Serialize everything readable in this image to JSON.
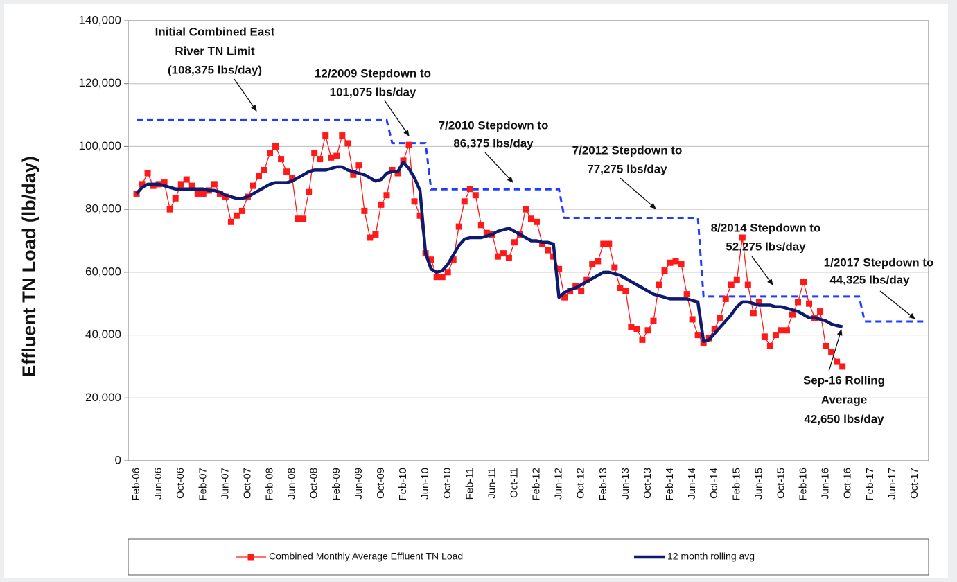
{
  "chart_data": {
    "type": "line",
    "y_label": "Effluent TN Load (lb/day)",
    "categories": [
      null,
      "Feb-06",
      null,
      null,
      null,
      "Jun-06",
      null,
      null,
      null,
      "Oct-06",
      null,
      null,
      null,
      "Feb-07",
      null,
      null,
      null,
      "Jun-07",
      null,
      null,
      null,
      "Oct-07",
      null,
      null,
      null,
      "Feb-08",
      null,
      null,
      null,
      "Jun-08",
      null,
      null,
      null,
      "Oct-08",
      null,
      null,
      null,
      "Feb-09",
      null,
      null,
      null,
      "Jun-09",
      null,
      null,
      null,
      "Oct-09",
      null,
      null,
      null,
      "Feb-10",
      null,
      null,
      null,
      "Jun-10",
      null,
      null,
      null,
      "Oct-10",
      null,
      null,
      null,
      "Feb-11",
      null,
      null,
      null,
      "Jun-11",
      null,
      null,
      null,
      "Oct-11",
      null,
      null,
      null,
      "Feb-12",
      null,
      null,
      null,
      "Jun-12",
      null,
      null,
      null,
      "Oct-12",
      null,
      null,
      null,
      "Feb-13",
      null,
      null,
      null,
      "Jun-13",
      null,
      null,
      null,
      "Oct-13",
      null,
      null,
      null,
      "Feb-14",
      null,
      null,
      null,
      "Jun-14",
      null,
      null,
      null,
      "Oct-14",
      null,
      null,
      null,
      "Feb-15",
      null,
      null,
      null,
      "Jun-15",
      null,
      null,
      null,
      "Oct-15",
      null,
      null,
      null,
      "Feb-16",
      null,
      null,
      null,
      "Jun-16",
      null,
      null,
      null,
      "Oct-16",
      null,
      null,
      null,
      "Feb-17",
      null,
      null,
      null,
      "Jun-17",
      null,
      null,
      null,
      "Oct-17",
      null,
      null
    ],
    "series": [
      {
        "name": "Combined Monthly Average Effluent TN Load",
        "color": "#ff1a1a",
        "marker": "square",
        "values": [
          null,
          85000,
          88000,
          91500,
          87500,
          88000,
          88500,
          80000,
          83500,
          88000,
          89500,
          87500,
          85000,
          85000,
          86000,
          88000,
          85000,
          84000,
          76000,
          78000,
          79500,
          84000,
          87500,
          90500,
          92500,
          98000,
          100000,
          96000,
          92000,
          90000,
          77000,
          77000,
          85500,
          98000,
          96000,
          103500,
          96500,
          97000,
          103500,
          101000,
          91000,
          94000,
          79500,
          71000,
          72000,
          81500,
          84500,
          92500,
          91500,
          95500,
          100500,
          82500,
          78000,
          66000,
          64000,
          58500,
          58500,
          60000,
          64000,
          74500,
          82500,
          86500,
          84500,
          75000,
          72500,
          72000,
          65000,
          66000,
          64500,
          69500,
          72000,
          80000,
          77000,
          76000,
          69000,
          67000,
          65000,
          61000,
          52000,
          54000,
          55500,
          54000,
          57500,
          62500,
          63500,
          69000,
          69000,
          61500,
          55000,
          54000,
          42500,
          42000,
          38500,
          41500,
          44500,
          56000,
          60500,
          63000,
          63500,
          62500,
          53000,
          45000,
          40000,
          37500,
          39000,
          42000,
          45500,
          51500,
          56000,
          57500,
          71000,
          56000,
          47000,
          50500,
          39500,
          36500,
          40000,
          41500,
          41500,
          46500,
          50500,
          57000,
          50000,
          45500,
          47500,
          36500,
          34500,
          31500,
          30000,
          null,
          null,
          null,
          null,
          null,
          null,
          null,
          null,
          null,
          null,
          null,
          null,
          null,
          null,
          null
        ]
      },
      {
        "name": "12 month rolling avg",
        "color": "#0d1a6e",
        "marker": "none",
        "values": [
          null,
          85000,
          87000,
          88000,
          88000,
          88000,
          87500,
          87000,
          86500,
          86500,
          86500,
          86500,
          86500,
          86500,
          86000,
          86000,
          85500,
          84500,
          84000,
          83500,
          83500,
          84000,
          85000,
          86000,
          87000,
          88000,
          88500,
          88500,
          88500,
          89000,
          90000,
          91000,
          92000,
          92500,
          92500,
          92500,
          93000,
          93500,
          93500,
          92500,
          92000,
          91500,
          91000,
          90000,
          89000,
          89500,
          91500,
          92000,
          92000,
          95000,
          93000,
          90000,
          86000,
          66000,
          61000,
          60000,
          60500,
          62500,
          65500,
          68500,
          70500,
          71000,
          71000,
          71000,
          71500,
          72000,
          73000,
          73500,
          74000,
          73000,
          72000,
          71000,
          70000,
          70000,
          69500,
          69500,
          69000,
          52000,
          53500,
          54500,
          55000,
          56000,
          57000,
          58000,
          59000,
          60000,
          60000,
          59500,
          59000,
          58000,
          57000,
          56000,
          55000,
          54000,
          53000,
          52500,
          52000,
          51500,
          51500,
          51500,
          51500,
          51000,
          50500,
          38000,
          38500,
          40500,
          42500,
          44500,
          46500,
          49000,
          50500,
          50500,
          50000,
          49500,
          49500,
          49500,
          49000,
          49000,
          48500,
          48000,
          47500,
          46500,
          45500,
          45500,
          45000,
          44500,
          43500,
          43000,
          42650,
          null,
          null,
          null,
          null,
          null,
          null,
          null,
          null,
          null,
          null,
          null,
          null,
          null,
          null,
          null
        ]
      }
    ],
    "limit": {
      "color": "#1f3cff",
      "dashed": true,
      "values": [
        null,
        108375,
        108375,
        108375,
        108375,
        108375,
        108375,
        108375,
        108375,
        108375,
        108375,
        108375,
        108375,
        108375,
        108375,
        108375,
        108375,
        108375,
        108375,
        108375,
        108375,
        108375,
        108375,
        108375,
        108375,
        108375,
        108375,
        108375,
        108375,
        108375,
        108375,
        108375,
        108375,
        108375,
        108375,
        108375,
        108375,
        108375,
        108375,
        108375,
        108375,
        108375,
        108375,
        108375,
        108375,
        108375,
        108375,
        101075,
        101075,
        101075,
        101075,
        101075,
        101075,
        101075,
        86375,
        86375,
        86375,
        86375,
        86375,
        86375,
        86375,
        86375,
        86375,
        86375,
        86375,
        86375,
        86375,
        86375,
        86375,
        86375,
        86375,
        86375,
        86375,
        86375,
        86375,
        86375,
        86375,
        86375,
        77275,
        77275,
        77275,
        77275,
        77275,
        77275,
        77275,
        77275,
        77275,
        77275,
        77275,
        77275,
        77275,
        77275,
        77275,
        77275,
        77275,
        77275,
        77275,
        77275,
        77275,
        77275,
        77275,
        77275,
        77275,
        52275,
        52275,
        52275,
        52275,
        52275,
        52275,
        52275,
        52275,
        52275,
        52275,
        52275,
        52275,
        52275,
        52275,
        52275,
        52275,
        52275,
        52275,
        52275,
        52275,
        52275,
        52275,
        52275,
        52275,
        52275,
        52275,
        52275,
        52275,
        52275,
        44325,
        44325,
        44325,
        44325,
        44325,
        44325,
        44325,
        44325,
        44325,
        44325,
        44325,
        44325
      ]
    },
    "ylim": [
      0,
      140000
    ],
    "yticks": [
      0,
      {
        "value": 20000,
        "label": "20,000"
      },
      {
        "value": 40000,
        "label": "40,000"
      },
      {
        "value": 60000,
        "label": "60,000"
      },
      {
        "value": 80000,
        "label": "80,000"
      },
      {
        "value": 100000,
        "label": "100,000"
      },
      {
        "value": 120000,
        "label": "120,000"
      },
      {
        "value": 140000,
        "label": "140,000"
      }
    ],
    "grid": true,
    "legend": "bottom",
    "annotations": [
      [
        "Initial Combined East",
        "River TN Limit",
        "(108,375 lbs/day)"
      ],
      [
        "12/2009 Stepdown to",
        "101,075 lbs/day"
      ],
      [
        "7/2010 Stepdown to",
        "86,375 lbs/day"
      ],
      [
        "7/2012 Stepdown to",
        "77,275 lbs/day"
      ],
      [
        "8/2014 Stepdown to",
        "52,275 lbs/day"
      ],
      [
        "1/2017 Stepdown to",
        "44,325 lbs/day"
      ],
      [
        "Sep-16 Rolling",
        "Average",
        "42,650 lbs/day"
      ]
    ]
  }
}
